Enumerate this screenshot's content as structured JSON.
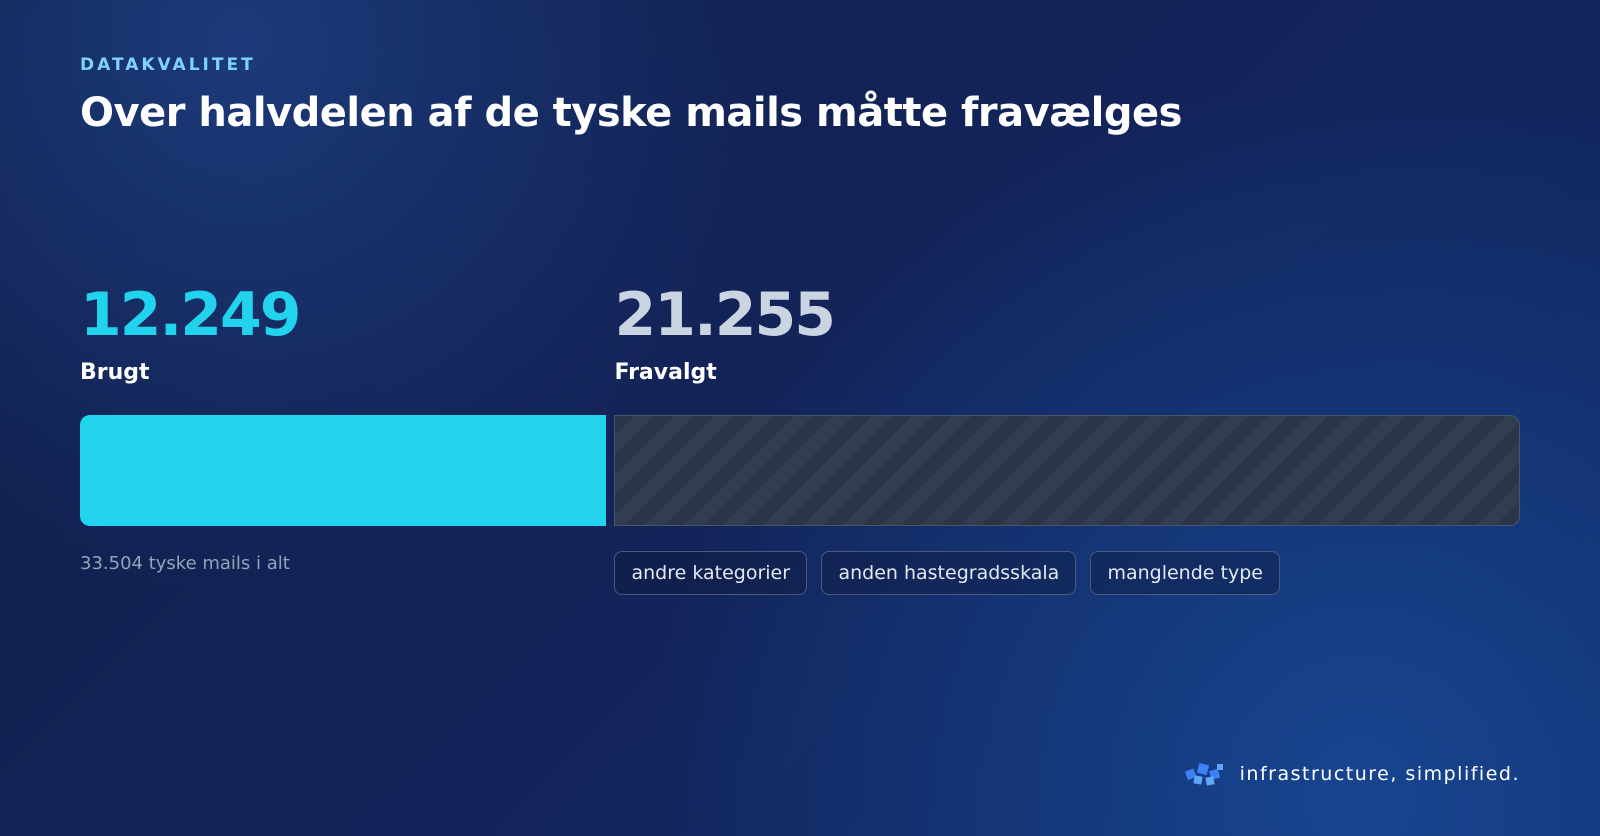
{
  "eyebrow": "DATAKVALITET",
  "chart_data": {
    "type": "bar",
    "orientation": "horizontal",
    "stacked": true,
    "title": "Over halvdelen af de tyske mails måtte fravælges",
    "series": [
      {
        "name": "Brugt",
        "color": "#22d3ee",
        "values": [
          12249
        ],
        "value_labels": [
          "12.249"
        ]
      },
      {
        "name": "Fravalgt",
        "color": "#cbd5e1",
        "values": [
          21255
        ],
        "value_labels": [
          "21.255"
        ]
      }
    ],
    "xlim": [
      0,
      33504
    ],
    "note": "33.504 tyske mails i alt"
  },
  "tags": [
    "andre kategorier",
    "anden hastegradsskala",
    "manglende type"
  ],
  "footer": {
    "tagline": "infrastructure, simplified."
  }
}
